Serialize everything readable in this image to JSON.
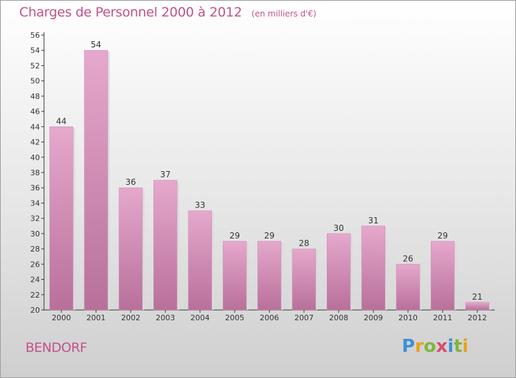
{
  "chart_data": {
    "type": "bar",
    "title": "Charges de Personnel 2000 à 2012",
    "subtitle": "(en milliers d'€)",
    "categories": [
      "2000",
      "2001",
      "2002",
      "2003",
      "2004",
      "2005",
      "2006",
      "2007",
      "2008",
      "2009",
      "2010",
      "2011",
      "2012"
    ],
    "values": [
      44,
      54,
      36,
      37,
      33,
      29,
      29,
      28,
      30,
      31,
      26,
      29,
      21
    ],
    "ylim": [
      20,
      56
    ],
    "yticks": [
      20,
      22,
      24,
      26,
      28,
      30,
      32,
      34,
      36,
      38,
      40,
      42,
      44,
      46,
      48,
      50,
      52,
      54,
      56
    ],
    "grid": false,
    "colors": {
      "bar_top": "#e6a8cd",
      "bar_bottom": "#b8709a",
      "text": "#333333",
      "accent": "#c2528a"
    }
  },
  "commune": "BENDORF",
  "logo": {
    "letters": [
      "P",
      "r",
      "o",
      "x",
      "i",
      "t",
      "i"
    ]
  }
}
